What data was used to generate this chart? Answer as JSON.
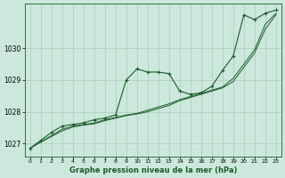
{
  "xlabel": "Graphe pression niveau de la mer (hPa)",
  "bg_color": "#cce8dc",
  "plot_bg_color": "#cce8dc",
  "grid_color": "#aaccbb",
  "line_color": "#1a5c28",
  "xlim": [
    -0.5,
    23.5
  ],
  "ylim": [
    1026.6,
    1031.4
  ],
  "yticks": [
    1027,
    1028,
    1029,
    1030
  ],
  "xticks": [
    0,
    1,
    2,
    3,
    4,
    5,
    6,
    7,
    8,
    9,
    10,
    11,
    12,
    13,
    14,
    15,
    16,
    17,
    18,
    19,
    20,
    21,
    22,
    23
  ],
  "s1_x": [
    0,
    1,
    2,
    3,
    4,
    5,
    6,
    7,
    8,
    9,
    10,
    11,
    12,
    13,
    14,
    15,
    16,
    17,
    18,
    19,
    20,
    21,
    22,
    23
  ],
  "s1_y": [
    1026.85,
    1027.1,
    1027.35,
    1027.55,
    1027.6,
    1027.65,
    1027.75,
    1027.8,
    1027.9,
    1029.0,
    1029.35,
    1029.25,
    1029.25,
    1029.2,
    1028.65,
    1028.55,
    1028.6,
    1028.8,
    1029.3,
    1029.75,
    1031.05,
    1030.9,
    1031.1,
    1031.2
  ],
  "s2_x": [
    0,
    1,
    2,
    3,
    4,
    5,
    6,
    7,
    8,
    9,
    10,
    11,
    12,
    13,
    14,
    15,
    16,
    17,
    18,
    19,
    20,
    21,
    22,
    23
  ],
  "s2_y": [
    1026.85,
    1027.05,
    1027.25,
    1027.45,
    1027.55,
    1027.6,
    1027.65,
    1027.75,
    1027.82,
    1027.9,
    1027.95,
    1028.05,
    1028.15,
    1028.25,
    1028.38,
    1028.48,
    1028.58,
    1028.68,
    1028.78,
    1029.05,
    1029.5,
    1029.95,
    1030.75,
    1031.1
  ],
  "s3_x": [
    0,
    1,
    2,
    3,
    4,
    5,
    6,
    7,
    8,
    9,
    10,
    11,
    12,
    13,
    14,
    15,
    16,
    17,
    18,
    19,
    20,
    21,
    22,
    23
  ],
  "s3_y": [
    1026.85,
    1027.05,
    1027.22,
    1027.4,
    1027.52,
    1027.58,
    1027.62,
    1027.72,
    1027.8,
    1027.88,
    1027.93,
    1028.0,
    1028.1,
    1028.2,
    1028.35,
    1028.45,
    1028.55,
    1028.65,
    1028.75,
    1028.95,
    1029.4,
    1029.85,
    1030.6,
    1031.05
  ]
}
